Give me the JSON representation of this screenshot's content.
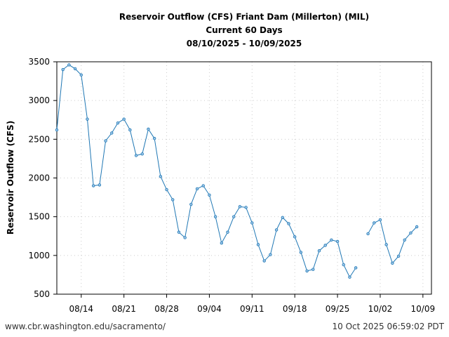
{
  "chart_data": {
    "type": "line",
    "title": [
      "Reservoir Outflow (CFS) Friant Dam (Millerton) (MIL)",
      "Current 60 Days",
      "08/10/2025 - 10/09/2025"
    ],
    "xlabel": "",
    "ylabel": "Reservoir Outflow (CFS)",
    "ylim": [
      500,
      3500
    ],
    "yticks": [
      500,
      1000,
      1500,
      2000,
      2500,
      3000,
      3500
    ],
    "start_date": "08/10/2025",
    "xlim_days": [
      0,
      61.4
    ],
    "xticks": [
      {
        "day": 4,
        "label": "08/14"
      },
      {
        "day": 11,
        "label": "08/21"
      },
      {
        "day": 18,
        "label": "08/28"
      },
      {
        "day": 25,
        "label": "09/04"
      },
      {
        "day": 32,
        "label": "09/11"
      },
      {
        "day": 39,
        "label": "09/18"
      },
      {
        "day": 46,
        "label": "09/25"
      },
      {
        "day": 53,
        "label": "10/02"
      },
      {
        "day": 60,
        "label": "10/09"
      }
    ],
    "grid": true,
    "series": [
      {
        "name": "Reservoir Outflow",
        "color": "#1f77b4",
        "values": [
          2620,
          3400,
          3460,
          3410,
          3330,
          2760,
          1900,
          1910,
          2480,
          2580,
          2710,
          2760,
          2620,
          2290,
          2310,
          2630,
          2510,
          2020,
          1850,
          1720,
          1300,
          1230,
          1660,
          1860,
          1900,
          1780,
          1500,
          1160,
          1300,
          1500,
          1630,
          1620,
          1420,
          1140,
          930,
          1010,
          1330,
          1490,
          1410,
          1240,
          1040,
          800,
          820,
          1060,
          1130,
          1200,
          1180,
          880,
          720,
          840,
          null,
          1280,
          1420,
          1460,
          1140,
          900,
          990,
          1200,
          1290,
          1370
        ]
      }
    ]
  },
  "footer": {
    "url": "www.cbr.washington.edu/sacramento/",
    "timestamp": "10 Oct 2025 06:59:02 PDT"
  }
}
